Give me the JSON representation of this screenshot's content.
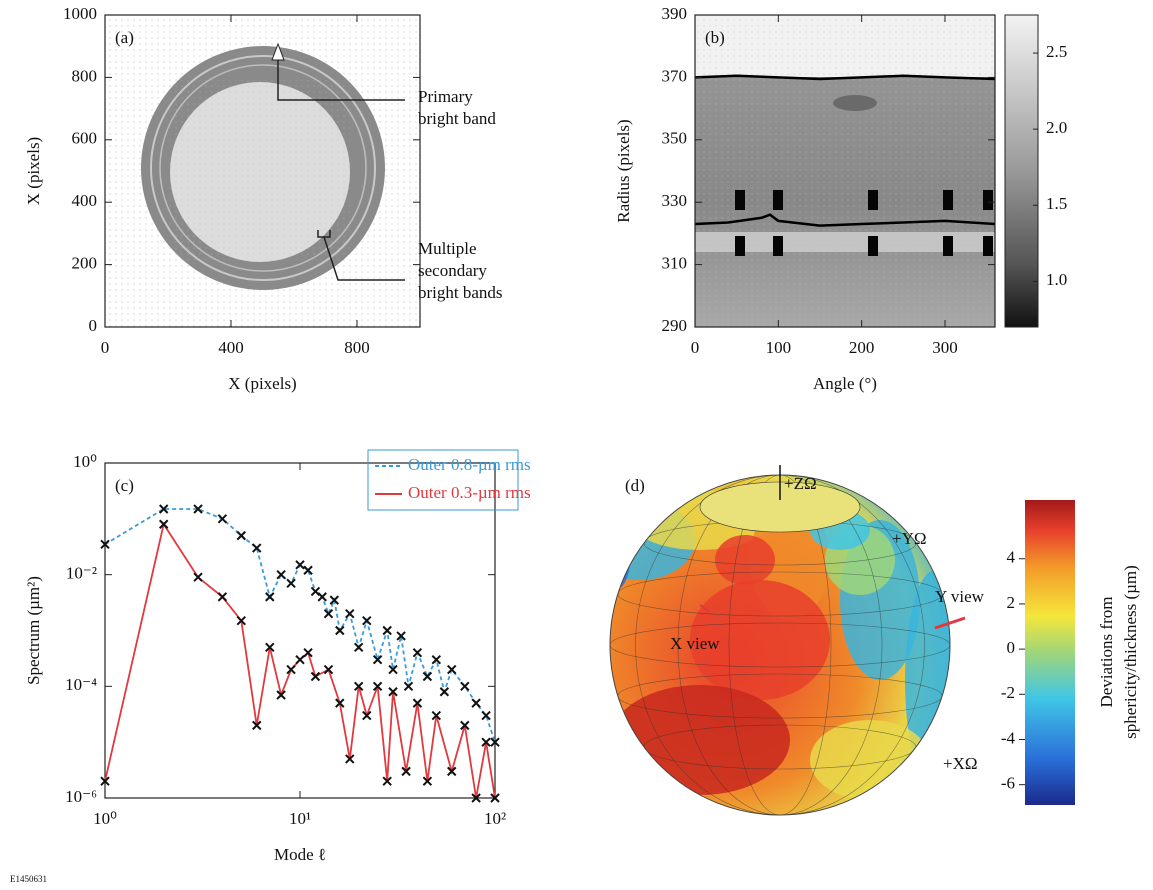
{
  "figure_id": "E1450631",
  "chart_data": [
    {
      "type": "image",
      "panel_label": "(a)",
      "xlabel": "X (pixels)",
      "ylabel": "X (pixels)",
      "xlim": [
        0,
        1000
      ],
      "ylim": [
        0,
        1000
      ],
      "xticks": [
        0,
        400,
        800
      ],
      "yticks": [
        0,
        200,
        400,
        600,
        800,
        1000
      ],
      "annotations": [
        {
          "lines": [
            "Primary",
            "bright band"
          ]
        },
        {
          "lines": [
            "Multiple",
            "secondary",
            "bright bands"
          ]
        }
      ]
    },
    {
      "type": "heatmap",
      "panel_label": "(b)",
      "xlabel": "Angle (°)",
      "ylabel": "Radius (pixels)",
      "xlim": [
        0,
        360
      ],
      "ylim": [
        290,
        390
      ],
      "xticks": [
        0,
        100,
        200,
        300
      ],
      "yticks": [
        290,
        310,
        330,
        350,
        370,
        390
      ],
      "colorbar": {
        "lim": [
          0.7,
          2.75
        ],
        "ticks": [
          {
            "value": 1,
            "label": "1.0"
          },
          1.5,
          {
            "value": 2,
            "label": "2.0"
          },
          2.5
        ]
      },
      "series": [
        {
          "color": "#000000",
          "x": [
            0,
            50,
            100,
            150,
            200,
            250,
            300,
            360
          ],
          "values": [
            370,
            370.5,
            370,
            369.5,
            370,
            370.5,
            370,
            369.5
          ]
        },
        {
          "color": "#000000",
          "x": [
            0,
            40,
            80,
            90,
            100,
            150,
            200,
            250,
            300,
            360
          ],
          "values": [
            323,
            323.5,
            325,
            326,
            324,
            322.5,
            323,
            323.5,
            324,
            323
          ]
        }
      ]
    },
    {
      "type": "line",
      "panel_label": "(c)",
      "xlabel": "Mode ℓ",
      "ylabel": "Spectrum (µm²)",
      "log_x": true,
      "log_y": true,
      "xlim": [
        1,
        100
      ],
      "ylim": [
        1e-06,
        1
      ],
      "xticks": [
        {
          "value": 1,
          "label": "10⁰"
        },
        {
          "value": 10,
          "label": "10¹"
        },
        {
          "value": 100,
          "label": "10²"
        }
      ],
      "yticks": [
        {
          "value": 1e-06,
          "label": "10⁻⁶"
        },
        {
          "value": 0.0001,
          "label": "10⁻⁴"
        },
        {
          "value": 0.01,
          "label": "10⁻²"
        },
        {
          "value": 1,
          "label": "10⁰"
        }
      ],
      "series": [
        {
          "name": "Outer 0.8-µm rms",
          "color": "#3a9ad9",
          "dash": true,
          "x": [
            1,
            2,
            3,
            4,
            5,
            6,
            7,
            8,
            9,
            10,
            11,
            12,
            13,
            14,
            15,
            16,
            18,
            20,
            22,
            25,
            28,
            30,
            33,
            36,
            40,
            45,
            50,
            55,
            60,
            70,
            80,
            90,
            100
          ],
          "values": [
            0.035,
            0.15,
            0.15,
            0.1,
            0.05,
            0.03,
            0.004,
            0.01,
            0.007,
            0.015,
            0.012,
            0.005,
            0.004,
            0.002,
            0.0035,
            0.001,
            0.002,
            0.0005,
            0.0015,
            0.0003,
            0.001,
            0.0002,
            0.0008,
            0.0001,
            0.0004,
            0.00015,
            0.0003,
            8e-05,
            0.0002,
            0.0001,
            5e-05,
            3e-05,
            1e-05
          ]
        },
        {
          "name": "Outer 0.3-µm rms",
          "color": "#e0393e",
          "dash": false,
          "x": [
            1,
            2,
            3,
            4,
            5,
            6,
            7,
            8,
            9,
            10,
            11,
            12,
            14,
            16,
            18,
            20,
            22,
            25,
            28,
            30,
            35,
            40,
            45,
            50,
            60,
            70,
            80,
            90,
            100
          ],
          "values": [
            2e-06,
            0.08,
            0.009,
            0.004,
            0.0015,
            2e-05,
            0.0005,
            7e-05,
            0.0002,
            0.0003,
            0.0004,
            0.00015,
            0.0002,
            5e-05,
            5e-06,
            0.0001,
            3e-05,
            0.0001,
            2e-06,
            8e-05,
            3e-06,
            5e-05,
            2e-06,
            3e-05,
            3e-06,
            2e-05,
            1e-06,
            1e-05,
            1e-06
          ]
        }
      ]
    },
    {
      "type": "sphere",
      "panel_label": "(d)",
      "annotations": [
        "+ZΩ",
        "+YΩ",
        "Y view",
        "X view",
        "+XΩ"
      ],
      "colorbar": {
        "label": [
          "Deviations from",
          "sphericity/thickness (µm)"
        ],
        "lim": [
          -6.9,
          6.6
        ],
        "ticks": [
          4,
          2,
          0,
          -2,
          -4,
          -6
        ]
      }
    }
  ]
}
